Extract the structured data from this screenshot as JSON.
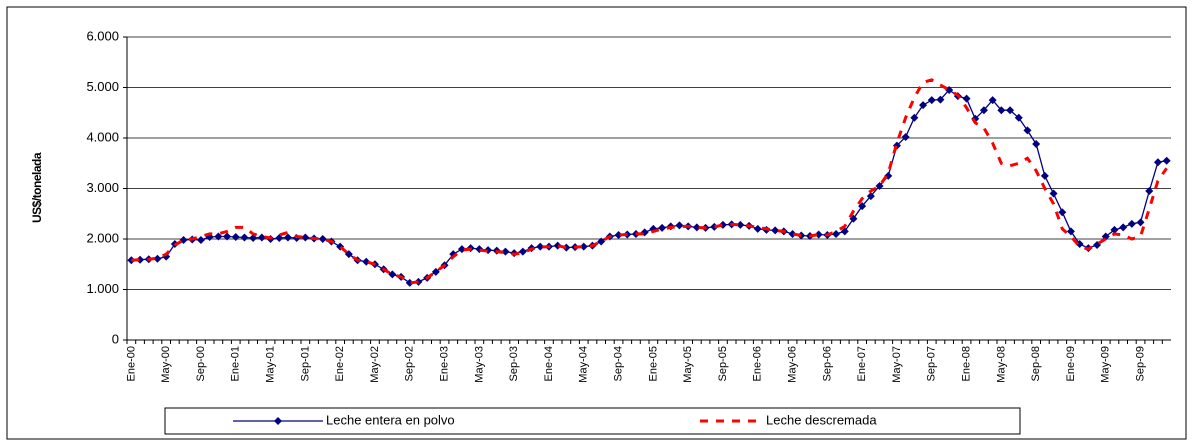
{
  "chart_data": {
    "type": "line",
    "y_label": "US$/tonelada",
    "categories": [
      "Ene-00",
      null,
      null,
      null,
      "May-00",
      null,
      null,
      null,
      "Sep-00",
      null,
      null,
      null,
      "Ene-01",
      null,
      null,
      null,
      "May-01",
      null,
      null,
      null,
      "Sep-01",
      null,
      null,
      null,
      "Ene-02",
      null,
      null,
      null,
      "May-02",
      null,
      null,
      null,
      "Sep-02",
      null,
      null,
      null,
      "Ene-03",
      null,
      null,
      null,
      "May-03",
      null,
      null,
      null,
      "Sep-03",
      null,
      null,
      null,
      "Ene-04",
      null,
      null,
      null,
      "May-04",
      null,
      null,
      null,
      "Sep-04",
      null,
      null,
      null,
      "Ene-05",
      null,
      null,
      null,
      "May-05",
      null,
      null,
      null,
      "Sep-05",
      null,
      null,
      null,
      "Ene-06",
      null,
      null,
      null,
      "May-06",
      null,
      null,
      null,
      "Sep-06",
      null,
      null,
      null,
      "Ene-07",
      null,
      null,
      null,
      "May-07",
      null,
      null,
      null,
      "Sep-07",
      null,
      null,
      null,
      "Ene-08",
      null,
      null,
      null,
      "May-08",
      null,
      null,
      null,
      "Sep-08",
      null,
      null,
      null,
      "Ene-09",
      null,
      null,
      null,
      "May-09",
      null,
      null,
      null,
      "Sep-09",
      null,
      null,
      null
    ],
    "series": [
      {
        "name": "Leche entera en polvo",
        "color": "#000080",
        "values": [
          1580,
          1590,
          1600,
          1610,
          1650,
          1900,
          1980,
          1990,
          1980,
          2040,
          2050,
          2050,
          2040,
          2030,
          2020,
          2030,
          2000,
          2020,
          2030,
          2020,
          2030,
          2010,
          2000,
          1950,
          1850,
          1700,
          1580,
          1550,
          1500,
          1400,
          1300,
          1250,
          1130,
          1150,
          1230,
          1350,
          1480,
          1700,
          1800,
          1820,
          1800,
          1780,
          1770,
          1750,
          1720,
          1750,
          1820,
          1850,
          1850,
          1870,
          1830,
          1840,
          1850,
          1870,
          1950,
          2050,
          2080,
          2090,
          2100,
          2130,
          2200,
          2220,
          2250,
          2270,
          2250,
          2230,
          2220,
          2240,
          2280,
          2290,
          2280,
          2260,
          2200,
          2180,
          2170,
          2150,
          2100,
          2070,
          2060,
          2090,
          2080,
          2100,
          2150,
          2400,
          2650,
          2850,
          3050,
          3250,
          3850,
          4020,
          4400,
          4650,
          4750,
          4760,
          4950,
          4830,
          4780,
          4380,
          4550,
          4750,
          4550,
          4550,
          4400,
          4150,
          3880,
          3250,
          2900,
          2530,
          2150,
          1900,
          1820,
          1880,
          2050,
          2180,
          2230,
          2300,
          2330,
          2950,
          3520,
          3550
        ]
      },
      {
        "name": "Leche descremada",
        "color": "#ff0000",
        "values": [
          1580,
          1590,
          1600,
          1620,
          1700,
          1880,
          1980,
          2000,
          2050,
          2100,
          2100,
          2150,
          2230,
          2230,
          2100,
          2050,
          2020,
          2080,
          2130,
          2050,
          2030,
          2010,
          2000,
          1950,
          1850,
          1700,
          1580,
          1550,
          1500,
          1400,
          1300,
          1250,
          1130,
          1150,
          1230,
          1350,
          1480,
          1650,
          1780,
          1800,
          1780,
          1760,
          1750,
          1730,
          1700,
          1730,
          1800,
          1840,
          1850,
          1870,
          1830,
          1840,
          1850,
          1870,
          1950,
          2050,
          2080,
          2090,
          2100,
          2100,
          2150,
          2200,
          2230,
          2250,
          2250,
          2230,
          2220,
          2240,
          2280,
          2290,
          2280,
          2260,
          2230,
          2200,
          2170,
          2150,
          2100,
          2070,
          2060,
          2090,
          2080,
          2150,
          2250,
          2550,
          2800,
          2950,
          3050,
          3300,
          3900,
          4400,
          4800,
          5100,
          5150,
          5050,
          4950,
          4850,
          4600,
          4300,
          4200,
          3900,
          3500,
          3450,
          3500,
          3600,
          3350,
          3000,
          2700,
          2200,
          2050,
          1850,
          1800,
          1900,
          2000,
          2100,
          2080,
          2000,
          2050,
          2600,
          3150,
          3400
        ]
      }
    ],
    "ylim": [
      0,
      6000
    ],
    "yticks": [
      0,
      {
        "value": 1000,
        "label": "1.000"
      },
      {
        "value": 2000,
        "label": "2.000"
      },
      {
        "value": 3000,
        "label": "3.000"
      },
      {
        "value": 4000,
        "label": "4.000"
      },
      {
        "value": 5000,
        "label": "5.000"
      },
      {
        "value": 6000,
        "label": "6.000"
      }
    ],
    "grid": true,
    "legend": "bottom"
  }
}
